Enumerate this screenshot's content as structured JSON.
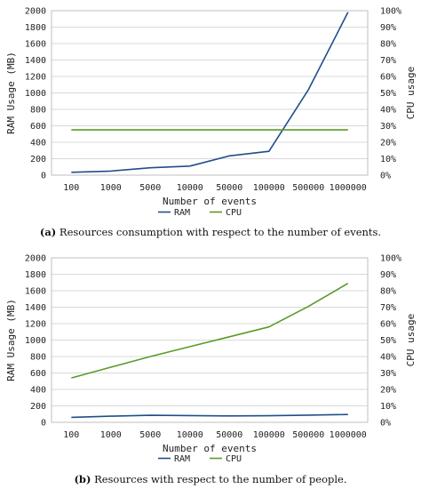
{
  "colors": {
    "ram": "#1f4e8c",
    "cpu": "#5a9a2a",
    "grid": "#d9d9d9",
    "axis": "#bfbfbf"
  },
  "chart_data": [
    {
      "type": "line",
      "categories": [
        "100",
        "1000",
        "5000",
        "10000",
        "50000",
        "100000",
        "500000",
        "1000000"
      ],
      "xlabel": "Number of events",
      "ylabel": "RAM Usage (MB)",
      "ylabel_right": "CPU usage",
      "ylim": [
        0,
        2000
      ],
      "yticks": [
        "0",
        "200",
        "400",
        "600",
        "800",
        "1000",
        "1200",
        "1400",
        "1600",
        "1800",
        "2000"
      ],
      "ylim_right": [
        0,
        100
      ],
      "yticks_right": [
        "0%",
        "10%",
        "20%",
        "30%",
        "40%",
        "50%",
        "60%",
        "70%",
        "80%",
        "90%",
        "100%"
      ],
      "grid": "horizontal",
      "legend": "bottom",
      "series": [
        {
          "name": "RAM",
          "axis": "left",
          "values": [
            35,
            50,
            90,
            110,
            235,
            290,
            1040,
            1980
          ]
        },
        {
          "name": "CPU",
          "axis": "right",
          "values": [
            27.5,
            27.5,
            27.5,
            27.5,
            27.5,
            27.5,
            27.5,
            27.5
          ]
        }
      ],
      "caption_label": "(a)",
      "caption": "Resources consumption with respect to the number of events."
    },
    {
      "type": "line",
      "categories": [
        "100",
        "1000",
        "5000",
        "10000",
        "50000",
        "100000",
        "500000",
        "1000000"
      ],
      "xlabel": "Number of events",
      "ylabel": "RAM Usage (MB)",
      "ylabel_right": "CPU usage",
      "ylim": [
        0,
        2000
      ],
      "yticks": [
        "0",
        "200",
        "400",
        "600",
        "800",
        "1000",
        "1200",
        "1400",
        "1600",
        "1800",
        "2000"
      ],
      "ylim_right": [
        0,
        100
      ],
      "yticks_right": [
        "0%",
        "10%",
        "20%",
        "30%",
        "40%",
        "50%",
        "60%",
        "70%",
        "80%",
        "90%",
        "100%"
      ],
      "grid": "horizontal",
      "legend": "bottom",
      "series": [
        {
          "name": "RAM",
          "axis": "left",
          "values": [
            60,
            75,
            85,
            82,
            78,
            80,
            88,
            95
          ]
        },
        {
          "name": "CPU",
          "axis": "right",
          "values": [
            27,
            33.5,
            40,
            46,
            52,
            58,
            70.5,
            84.5
          ]
        }
      ],
      "caption_label": "(b)",
      "caption": "Resources with respect to the number of people."
    }
  ]
}
